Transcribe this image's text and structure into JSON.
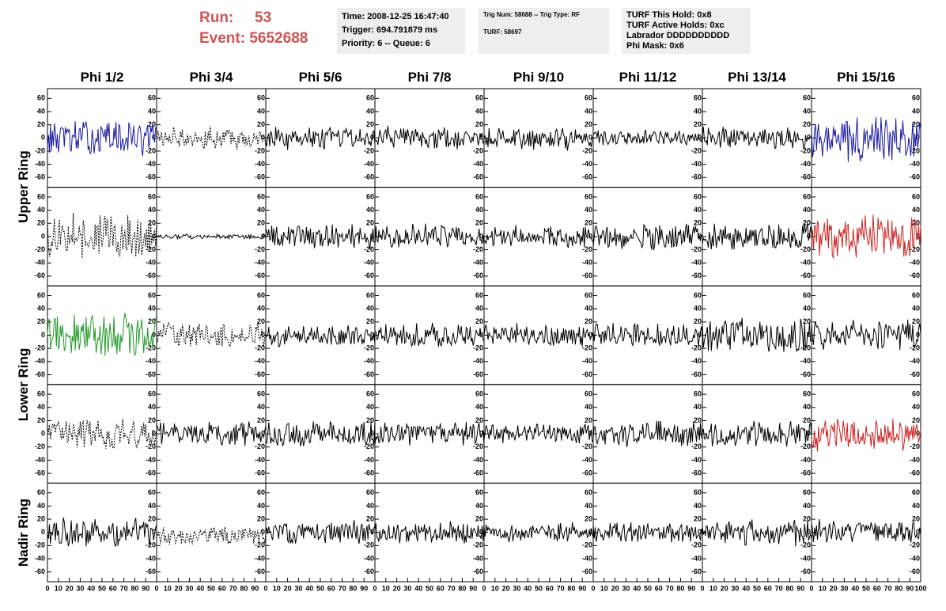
{
  "header": {
    "run_label": "Run:",
    "run_value": "53",
    "event_label": "Event:",
    "event_value": "5652688"
  },
  "info_time": {
    "time": "Time: 2008-12-25 16:47:40",
    "trigger": "Trigger: 694.791879 ms",
    "priority": "Priority: 6 -- Queue: 6"
  },
  "info_trig": {
    "trig": "Trig Num: 58688 -- Trig Type: RF",
    "turf": "TURF: 58697"
  },
  "info_turf": {
    "hold": "TURF This Hold: 0x8",
    "active": "TURF Active Holds: 0xc",
    "labrador": "Labrador DDDDDDDDDD",
    "phimask": "Phi Mask: 0x6"
  },
  "chart_data": {
    "type": "line",
    "columns": [
      "Phi 1/2",
      "Phi 3/4",
      "Phi 5/6",
      "Phi 7/8",
      "Phi 9/10",
      "Phi 11/12",
      "Phi 13/14",
      "Phi 15/16"
    ],
    "rows": [
      "Upper Ring",
      "Lower Ring",
      "Nadir Ring"
    ],
    "xlim": [
      0,
      100
    ],
    "ylim": [
      -70,
      70
    ],
    "x_ticks": [
      "0",
      "10",
      "20",
      "30",
      "40",
      "50",
      "60",
      "70",
      "80",
      "90",
      "100"
    ],
    "y_ticks": [
      "-60",
      "-40",
      "-20",
      "0",
      "20",
      "40",
      "60"
    ],
    "waveform_colors": {
      "blue": "#1a1aa0",
      "red": "#cc2222",
      "green": "#22992a",
      "black": "#000000"
    },
    "panels": [
      {
        "row": 0,
        "col": 0,
        "color": "blue",
        "style": "solid",
        "amp": 22,
        "mean": 0
      },
      {
        "row": 0,
        "col": 1,
        "color": "black",
        "style": "dashed",
        "amp": 14,
        "mean": 0
      },
      {
        "row": 0,
        "col": 2,
        "color": "black",
        "style": "solid",
        "amp": 14,
        "mean": 0
      },
      {
        "row": 0,
        "col": 3,
        "color": "black",
        "style": "solid",
        "amp": 14,
        "mean": 0
      },
      {
        "row": 0,
        "col": 4,
        "color": "black",
        "style": "solid",
        "amp": 15,
        "mean": 0
      },
      {
        "row": 0,
        "col": 5,
        "color": "black",
        "style": "solid",
        "amp": 10,
        "mean": 0
      },
      {
        "row": 0,
        "col": 6,
        "color": "black",
        "style": "solid",
        "amp": 14,
        "mean": 0
      },
      {
        "row": 0,
        "col": 7,
        "color": "blue",
        "style": "solid",
        "amp": 30,
        "mean": 0
      },
      {
        "row": 1,
        "col": 0,
        "color": "black",
        "style": "dashed",
        "amp": 28,
        "mean": 0
      },
      {
        "row": 1,
        "col": 1,
        "color": "black",
        "style": "solid",
        "amp": 3,
        "mean": 0
      },
      {
        "row": 1,
        "col": 2,
        "color": "black",
        "style": "solid",
        "amp": 16,
        "mean": 0
      },
      {
        "row": 1,
        "col": 3,
        "color": "black",
        "style": "solid",
        "amp": 15,
        "mean": 0
      },
      {
        "row": 1,
        "col": 4,
        "color": "black",
        "style": "solid",
        "amp": 14,
        "mean": 0
      },
      {
        "row": 1,
        "col": 5,
        "color": "black",
        "style": "solid",
        "amp": 16,
        "mean": 0
      },
      {
        "row": 1,
        "col": 6,
        "color": "black",
        "style": "solid",
        "amp": 17,
        "mean": 0
      },
      {
        "row": 1,
        "col": 7,
        "color": "red",
        "style": "solid",
        "amp": 28,
        "mean": 0
      },
      {
        "row": 2,
        "col": 0,
        "color": "green",
        "style": "solid",
        "amp": 28,
        "mean": 0
      },
      {
        "row": 2,
        "col": 1,
        "color": "black",
        "style": "dashed",
        "amp": 15,
        "mean": 0
      },
      {
        "row": 2,
        "col": 2,
        "color": "black",
        "style": "solid",
        "amp": 14,
        "mean": 0
      },
      {
        "row": 2,
        "col": 3,
        "color": "black",
        "style": "solid",
        "amp": 15,
        "mean": 0
      },
      {
        "row": 2,
        "col": 4,
        "color": "black",
        "style": "solid",
        "amp": 14,
        "mean": 0
      },
      {
        "row": 2,
        "col": 5,
        "color": "black",
        "style": "solid",
        "amp": 14,
        "mean": 0
      },
      {
        "row": 2,
        "col": 6,
        "color": "black",
        "style": "solid",
        "amp": 22,
        "mean": 0
      },
      {
        "row": 2,
        "col": 7,
        "color": "black",
        "style": "solid",
        "amp": 18,
        "mean": 0
      },
      {
        "row": 3,
        "col": 0,
        "color": "black",
        "style": "dashed",
        "amp": 18,
        "mean": 0
      },
      {
        "row": 3,
        "col": 1,
        "color": "black",
        "style": "solid",
        "amp": 15,
        "mean": 0
      },
      {
        "row": 3,
        "col": 2,
        "color": "black",
        "style": "solid",
        "amp": 16,
        "mean": 0
      },
      {
        "row": 3,
        "col": 3,
        "color": "black",
        "style": "solid",
        "amp": 15,
        "mean": 0
      },
      {
        "row": 3,
        "col": 4,
        "color": "black",
        "style": "solid",
        "amp": 12,
        "mean": 0
      },
      {
        "row": 3,
        "col": 5,
        "color": "black",
        "style": "solid",
        "amp": 16,
        "mean": 0
      },
      {
        "row": 3,
        "col": 6,
        "color": "black",
        "style": "solid",
        "amp": 16,
        "mean": 0
      },
      {
        "row": 3,
        "col": 7,
        "color": "red",
        "style": "solid",
        "amp": 20,
        "mean": 0
      },
      {
        "row": 4,
        "col": 0,
        "color": "black",
        "style": "solid",
        "amp": 18,
        "mean": 0
      },
      {
        "row": 4,
        "col": 1,
        "color": "black",
        "style": "dashed",
        "amp": 12,
        "mean": -5
      },
      {
        "row": 4,
        "col": 2,
        "color": "black",
        "style": "solid",
        "amp": 15,
        "mean": 0
      },
      {
        "row": 4,
        "col": 3,
        "color": "black",
        "style": "solid",
        "amp": 14,
        "mean": 0
      },
      {
        "row": 4,
        "col": 4,
        "color": "black",
        "style": "solid",
        "amp": 12,
        "mean": 0
      },
      {
        "row": 4,
        "col": 5,
        "color": "black",
        "style": "solid",
        "amp": 13,
        "mean": 0
      },
      {
        "row": 4,
        "col": 6,
        "color": "black",
        "style": "solid",
        "amp": 16,
        "mean": 0
      },
      {
        "row": 4,
        "col": 7,
        "color": "black",
        "style": "solid",
        "amp": 15,
        "mean": 0
      }
    ]
  }
}
